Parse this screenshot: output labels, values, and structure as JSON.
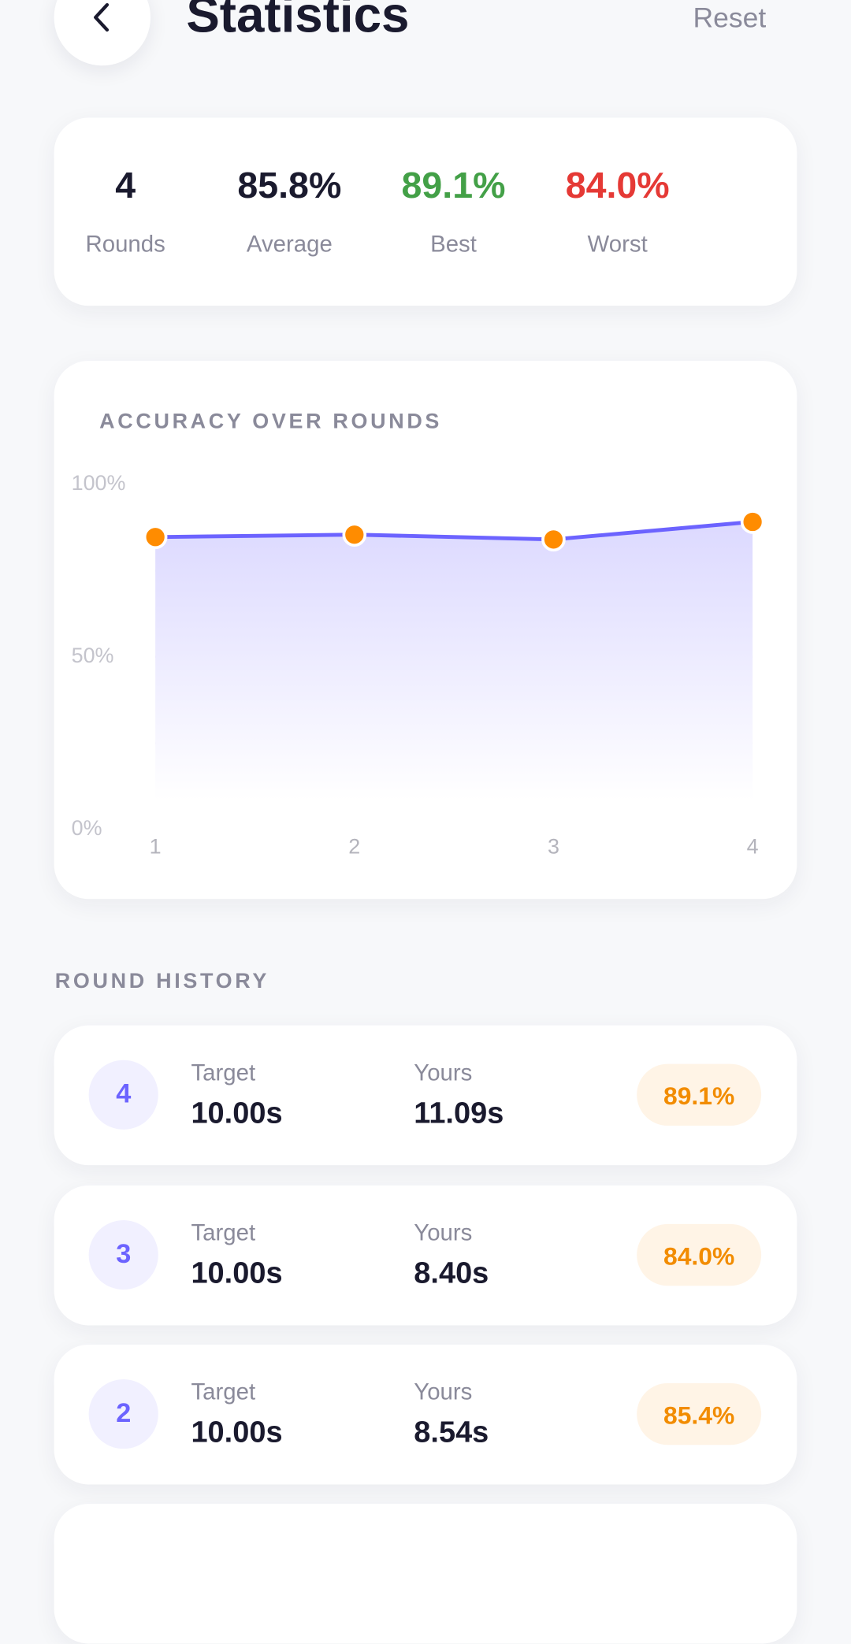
{
  "header": {
    "title": "Statistics",
    "action": "Reset"
  },
  "summary": [
    {
      "value": "4",
      "label": "Rounds",
      "color": "#1a1a2e"
    },
    {
      "value": "85.8%",
      "label": "Average",
      "color": "#1a1a2e"
    },
    {
      "value": "89.1%",
      "label": "Best",
      "color": "#43a047"
    },
    {
      "value": "84.0%",
      "label": "Worst",
      "color": "#e53935"
    }
  ],
  "chart_data": {
    "type": "area",
    "title": "ACCURACY OVER ROUNDS",
    "categories": [
      "1",
      "2",
      "3",
      "4"
    ],
    "values": [
      84.7,
      85.4,
      84.0,
      89.1
    ],
    "color": "#6c63ff",
    "marker_color": "#ff8c00",
    "ylim": [
      0,
      100
    ],
    "yticks": [
      {
        "value": 0,
        "label": "0%"
      },
      {
        "value": 50,
        "label": "50%"
      },
      {
        "value": 100,
        "label": "100%"
      }
    ],
    "ygrid": [
      25,
      50,
      75
    ],
    "grid": true
  },
  "history": {
    "title": "ROUND HISTORY",
    "rows": [
      {
        "round": "4",
        "target_label": "Target",
        "target": "10.00s",
        "yours_label": "Yours",
        "yours": "11.09s",
        "accuracy": "89.1%"
      },
      {
        "round": "3",
        "target_label": "Target",
        "target": "10.00s",
        "yours_label": "Yours",
        "yours": "8.40s",
        "accuracy": "84.0%"
      },
      {
        "round": "2",
        "target_label": "Target",
        "target": "10.00s",
        "yours_label": "Yours",
        "yours": "8.54s",
        "accuracy": "85.4%"
      }
    ]
  }
}
